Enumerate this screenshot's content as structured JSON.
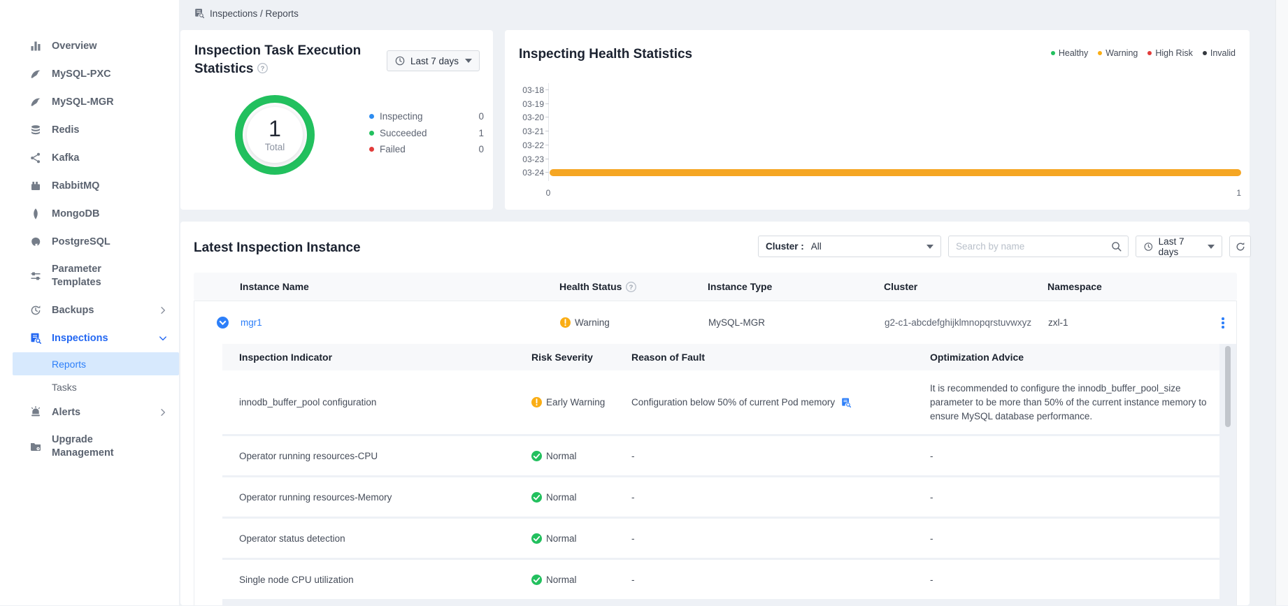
{
  "colors": {
    "accent_blue": "#2d7ff9",
    "nav_blue": "#2468f2",
    "green": "#22c05e",
    "orange": "#faad14",
    "bar_orange": "#f5a623",
    "red": "#e23c3a",
    "invalid_dark": "#34383e",
    "inspecting_blue": "#2d8cf0"
  },
  "breadcrumb": {
    "text": "Inspections / Reports"
  },
  "sidebar": {
    "items": [
      {
        "label": "Overview",
        "icon": "chart-bars"
      },
      {
        "label": "MySQL-PXC",
        "icon": "dolphin"
      },
      {
        "label": "MySQL-MGR",
        "icon": "dolphin"
      },
      {
        "label": "Redis",
        "icon": "database-stack"
      },
      {
        "label": "Kafka",
        "icon": "node-network"
      },
      {
        "label": "RabbitMQ",
        "icon": "rabbit-factory"
      },
      {
        "label": "MongoDB",
        "icon": "leaf"
      },
      {
        "label": "PostgreSQL",
        "icon": "elephant"
      },
      {
        "label": "Parameter Templates",
        "icon": "sliders",
        "two_line": true
      },
      {
        "label": "Backups",
        "icon": "backup-clock",
        "chevron": "right"
      },
      {
        "label": "Inspections",
        "icon": "doc-magnifier",
        "chevron": "down",
        "active": true
      },
      {
        "label": "Reports",
        "child": true,
        "selected": true
      },
      {
        "label": "Tasks",
        "child": true
      },
      {
        "label": "Alerts",
        "icon": "alarm",
        "chevron": "right"
      },
      {
        "label": "Upgrade Management",
        "icon": "folder-gear",
        "two_line": true
      }
    ]
  },
  "cards": {
    "task_stats": {
      "title": "Inspection Task Execution Statistics",
      "range_label": "Last 7 days",
      "donut": {
        "total_value": "1",
        "total_label": "Total",
        "ring_color": "#22c05e"
      },
      "legend": [
        {
          "label": "Inspecting",
          "value": "0",
          "color": "#2d8cf0"
        },
        {
          "label": "Succeeded",
          "value": "1",
          "color": "#22c05e"
        },
        {
          "label": "Failed",
          "value": "0",
          "color": "#e23c3a"
        }
      ]
    },
    "health_stats": {
      "title": "Inspecting Health Statistics",
      "legend": [
        {
          "label": "Healthy",
          "color": "#22c05e"
        },
        {
          "label": "Warning",
          "color": "#faad14"
        },
        {
          "label": "High Risk",
          "color": "#e23c3a"
        },
        {
          "label": "Invalid",
          "color": "#34383e"
        }
      ],
      "chart_data": {
        "type": "bar",
        "orientation": "horizontal",
        "categories": [
          "03-18",
          "03-19",
          "03-20",
          "03-21",
          "03-22",
          "03-23",
          "03-24"
        ],
        "series": [
          {
            "name": "Warning",
            "color": "#f5a623",
            "values": [
              0,
              0,
              0,
              0,
              0,
              0,
              1
            ]
          }
        ],
        "xlim": [
          0,
          1
        ],
        "x_ticks": [
          "0",
          "1"
        ],
        "grid": false,
        "legend_entries": [
          "Healthy",
          "Warning",
          "High Risk",
          "Invalid"
        ],
        "legend_position": "top-right"
      }
    }
  },
  "instances": {
    "title": "Latest Inspection Instance",
    "filters": {
      "cluster_label": "Cluster :",
      "cluster_value": "All",
      "search_placeholder": "Search by name",
      "range_label": "Last 7 days"
    },
    "columns": [
      "Instance Name",
      "Health Status",
      "Instance Type",
      "Cluster",
      "Namespace"
    ],
    "rows": [
      {
        "name": "mgr1",
        "status": "Warning",
        "status_type": "warning",
        "type": "MySQL-MGR",
        "cluster": "g2-c1-abcdefghijklmnopqrstuvwxyz",
        "namespace": "zxl-1"
      }
    ],
    "detail": {
      "columns": [
        "Inspection Indicator",
        "Risk Severity",
        "Reason of Fault",
        "Optimization Advice"
      ],
      "rows": [
        {
          "indicator": "innodb_buffer_pool configuration",
          "severity": "Early Warning",
          "severity_type": "warning",
          "reason": "Configuration below 50% of current Pod memory",
          "reason_icon": "report-view-icon",
          "advice": "It is recommended to configure the innodb_buffer_pool_size parameter to be more than 50% of the current instance memory to ensure MySQL database performance."
        },
        {
          "indicator": "Operator running resources-CPU",
          "severity": "Normal",
          "severity_type": "normal",
          "reason": "-",
          "advice": "-"
        },
        {
          "indicator": "Operator running resources-Memory",
          "severity": "Normal",
          "severity_type": "normal",
          "reason": "-",
          "advice": "-"
        },
        {
          "indicator": "Operator status detection",
          "severity": "Normal",
          "severity_type": "normal",
          "reason": "-",
          "advice": "-"
        },
        {
          "indicator": "Single node CPU utilization",
          "severity": "Normal",
          "severity_type": "normal",
          "reason": "-",
          "advice": "-"
        }
      ]
    }
  }
}
